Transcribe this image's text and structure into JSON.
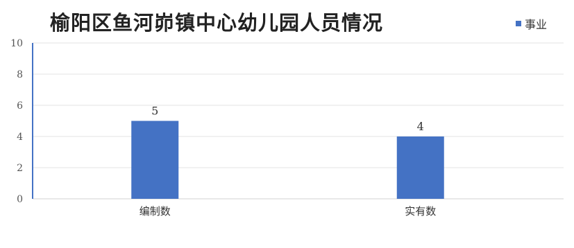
{
  "chart_data": {
    "type": "bar",
    "title": "榆阳区鱼河峁镇中心幼儿园人员情况",
    "categories": [
      "编制数",
      "实有数"
    ],
    "series": [
      {
        "name": "事业",
        "values": [
          5,
          4
        ],
        "color": "#4472c4"
      }
    ],
    "ylim": [
      0,
      10
    ],
    "yticks": [
      0,
      2,
      4,
      6,
      8,
      10
    ],
    "xlabel": "",
    "ylabel": "",
    "grid": true,
    "legend_position": "top-right",
    "data_labels": true
  }
}
